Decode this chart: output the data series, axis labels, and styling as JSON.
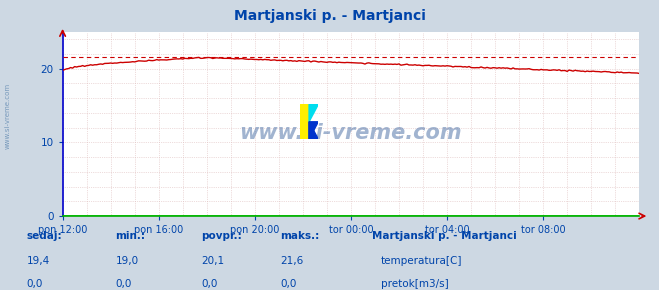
{
  "title": "Martjanski p. - Martjanci",
  "bg_color": "#cdd8e3",
  "plot_bg_color": "#ffffff",
  "grid_color_major": "#dd9999",
  "grid_color_minor": "#ddbbbb",
  "temp_color": "#cc0000",
  "pretok_color": "#00bb00",
  "axis_color_left": "#0000cc",
  "axis_color_bottom": "#00aa00",
  "axis_color_arrow": "#cc0000",
  "text_color": "#0044aa",
  "xlim": [
    0,
    288
  ],
  "ylim": [
    0,
    25
  ],
  "yticks": [
    0,
    10,
    20
  ],
  "max_line_y": 21.6,
  "x_tick_labels": [
    "pon 12:00",
    "pon 16:00",
    "pon 20:00",
    "tor 00:00",
    "tor 04:00",
    "tor 08:00"
  ],
  "x_tick_positions": [
    0,
    48,
    96,
    144,
    192,
    240
  ],
  "sedaj": "19,4",
  "min_val": "19,0",
  "povpr_val": "20,1",
  "maks_val": "21,6",
  "sedaj2": "0,0",
  "min_val2": "0,0",
  "povpr_val2": "0,0",
  "maks_val2": "0,0",
  "legend_title": "Martjanski p. - Martjanci",
  "legend_items": [
    "temperatura[C]",
    "pretok[m3/s]"
  ],
  "legend_colors": [
    "#cc0000",
    "#00bb00"
  ],
  "watermark": "www.si-vreme.com"
}
